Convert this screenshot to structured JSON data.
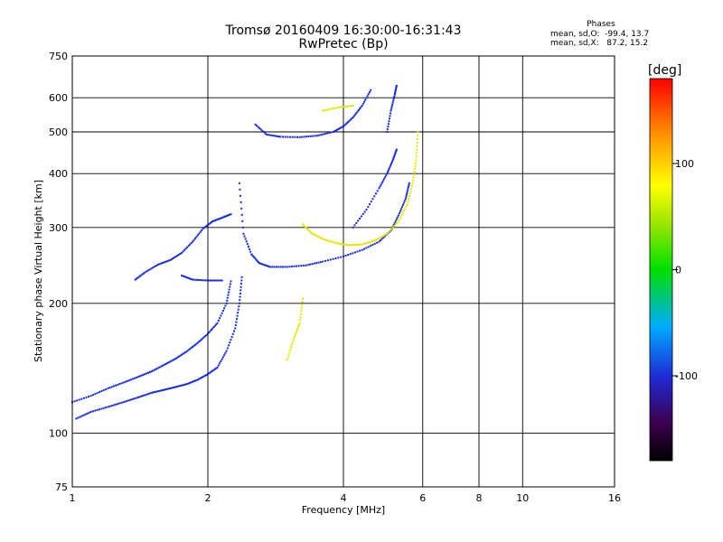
{
  "header": {
    "title": "Tromsø 20160409 16:30:00-16:31:43",
    "subtitle": "RwPretec (Bp)",
    "phases_heading": "Phases",
    "phase_o": "mean, sd,O:  -99.4, 13.7",
    "phase_x": "mean, sd,X:   87.2, 15.2"
  },
  "chart_data": {
    "type": "scatter",
    "title": "Tromsø 20160409 16:30:00-16:31:43",
    "subtitle": "RwPretec (Bp)",
    "xlabel": "Frequency [MHz]",
    "ylabel": "Stationary phase Virtual Height [km]",
    "x_scale": "log",
    "y_scale": "log",
    "xlim": [
      1,
      16
    ],
    "ylim": [
      75,
      750
    ],
    "x_ticks": [
      1,
      2,
      4,
      6,
      8,
      10,
      16
    ],
    "y_ticks": [
      75,
      100,
      200,
      300,
      400,
      500,
      600,
      750
    ],
    "grid": true,
    "colorbar": {
      "label": "[deg]",
      "range": [
        -180,
        180
      ],
      "ticks": [
        100,
        0,
        -100
      ],
      "colormap": "rainbow (black-purple-blue-cyan-green-yellow-orange-red)"
    },
    "series": [
      {
        "mode": "O",
        "color": "#1428e6",
        "segments": [
          [
            [
              1.02,
              108
            ],
            [
              1.1,
              112
            ],
            [
              1.2,
              115
            ],
            [
              1.3,
              118
            ],
            [
              1.4,
              121
            ],
            [
              1.5,
              124
            ],
            [
              1.6,
              126
            ],
            [
              1.7,
              128
            ],
            [
              1.8,
              130
            ],
            [
              1.9,
              133
            ],
            [
              2.0,
              137
            ],
            [
              2.1,
              142
            ],
            [
              2.2,
              155
            ],
            [
              2.3,
              175
            ],
            [
              2.35,
              200
            ],
            [
              2.38,
              230
            ]
          ],
          [
            [
              1.0,
              118
            ],
            [
              1.1,
              122
            ],
            [
              1.2,
              127
            ],
            [
              1.3,
              131
            ],
            [
              1.4,
              135
            ],
            [
              1.5,
              139
            ],
            [
              1.6,
              144
            ],
            [
              1.7,
              149
            ],
            [
              1.8,
              155
            ],
            [
              1.9,
              162
            ],
            [
              2.0,
              170
            ],
            [
              2.1,
              180
            ],
            [
              2.2,
              200
            ],
            [
              2.25,
              225
            ]
          ],
          [
            [
              1.38,
              227
            ],
            [
              1.45,
              236
            ],
            [
              1.55,
              246
            ],
            [
              1.65,
              252
            ],
            [
              1.75,
              262
            ],
            [
              1.85,
              278
            ],
            [
              1.95,
              298
            ],
            [
              2.05,
              310
            ],
            [
              2.15,
              316
            ],
            [
              2.25,
              322
            ]
          ],
          [
            [
              1.75,
              232
            ],
            [
              1.85,
              227
            ],
            [
              2.0,
              226
            ],
            [
              2.15,
              226
            ]
          ],
          [
            [
              2.35,
              380
            ],
            [
              2.4,
              290
            ],
            [
              2.5,
              260
            ],
            [
              2.6,
              248
            ],
            [
              2.75,
              243
            ],
            [
              3.0,
              243
            ],
            [
              3.3,
              245
            ],
            [
              3.6,
              250
            ],
            [
              4.0,
              257
            ],
            [
              4.4,
              266
            ],
            [
              4.8,
              278
            ],
            [
              5.1,
              295
            ],
            [
              5.3,
              320
            ],
            [
              5.5,
              350
            ],
            [
              5.6,
              380
            ]
          ],
          [
            [
              4.2,
              300
            ],
            [
              4.5,
              330
            ],
            [
              4.8,
              370
            ],
            [
              5.0,
              400
            ],
            [
              5.15,
              430
            ],
            [
              5.25,
              455
            ]
          ],
          [
            [
              2.55,
              520
            ],
            [
              2.7,
              493
            ],
            [
              2.9,
              487
            ],
            [
              3.2,
              486
            ],
            [
              3.5,
              490
            ],
            [
              3.8,
              500
            ],
            [
              4.0,
              515
            ],
            [
              4.2,
              540
            ],
            [
              4.4,
              575
            ],
            [
              4.6,
              625
            ]
          ],
          [
            [
              5.0,
              500
            ],
            [
              5.1,
              560
            ],
            [
              5.2,
              610
            ],
            [
              5.25,
              640
            ]
          ]
        ]
      },
      {
        "mode": "X",
        "color": "#e6e600",
        "segments": [
          [
            [
              3.25,
              305
            ],
            [
              3.4,
              291
            ],
            [
              3.6,
              282
            ],
            [
              3.85,
              276
            ],
            [
              4.1,
              273
            ],
            [
              4.4,
              274
            ],
            [
              4.7,
              280
            ],
            [
              5.0,
              290
            ],
            [
              5.3,
              310
            ],
            [
              5.55,
              340
            ],
            [
              5.7,
              380
            ],
            [
              5.8,
              430
            ],
            [
              5.85,
              500
            ]
          ],
          [
            [
              3.25,
              205
            ],
            [
              3.2,
              180
            ],
            [
              3.1,
              165
            ],
            [
              3.0,
              148
            ]
          ],
          [
            [
              3.6,
              560
            ],
            [
              3.9,
              570
            ],
            [
              4.2,
              575
            ]
          ]
        ]
      }
    ]
  }
}
